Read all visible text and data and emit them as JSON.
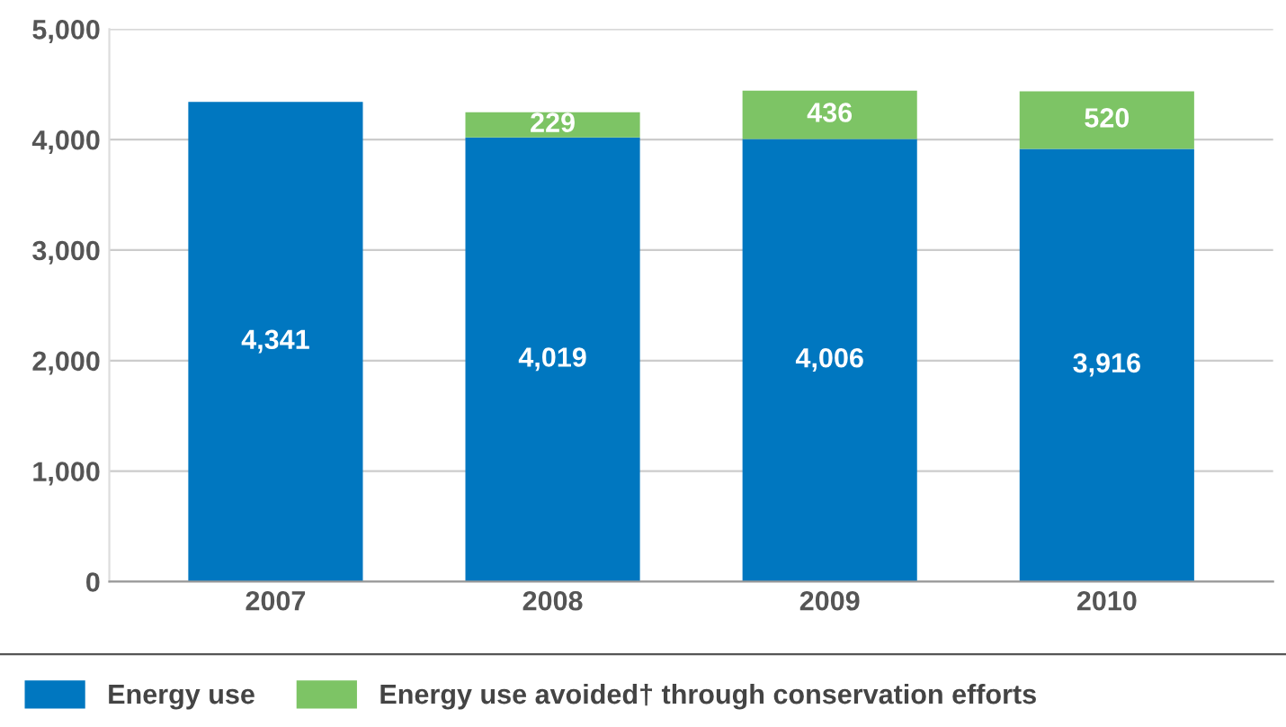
{
  "chart_data": {
    "type": "bar",
    "stacked": true,
    "categories": [
      "2007",
      "2008",
      "2009",
      "2010"
    ],
    "series": [
      {
        "name": "Energy use",
        "color": "#0077c0",
        "values": [
          4341,
          4019,
          4006,
          3916
        ],
        "value_labels": [
          "4,341",
          "4,019",
          "4,006",
          "3,916"
        ]
      },
      {
        "name": "Energy use avoided† through conservation efforts",
        "color": "#7dc465",
        "values": [
          null,
          229,
          436,
          520
        ],
        "value_labels": [
          null,
          "229",
          "436",
          "520"
        ]
      }
    ],
    "ylim": [
      0,
      5000
    ],
    "yticks": [
      0,
      {
        "value": 1000,
        "label": "1,000"
      },
      {
        "value": 2000,
        "label": "2,000"
      },
      {
        "value": 3000,
        "label": "3,000"
      },
      {
        "value": 4000,
        "label": "4,000"
      },
      {
        "value": 5000,
        "label": "5,000"
      }
    ],
    "grid": "y",
    "legend": "bottom"
  }
}
